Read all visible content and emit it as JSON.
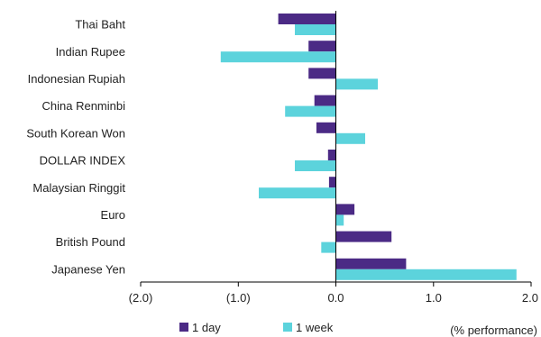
{
  "chart_data": {
    "type": "bar",
    "orientation": "horizontal",
    "categories": [
      "Thai Baht",
      "Indian Rupee",
      "Indonesian Rupiah",
      "China Renminbi",
      "South Korean Won",
      "DOLLAR INDEX",
      "Malaysian Ringgit",
      "Euro",
      "British Pound",
      "Japanese Yen"
    ],
    "series": [
      {
        "name": "1 day",
        "color": "#4B2A85",
        "values": [
          -0.59,
          -0.28,
          -0.28,
          -0.22,
          -0.2,
          -0.08,
          -0.07,
          0.19,
          0.57,
          0.72
        ]
      },
      {
        "name": "1 week",
        "color": "#5CD3DC",
        "values": [
          -0.42,
          -1.18,
          0.43,
          -0.52,
          0.3,
          -0.42,
          -0.79,
          0.08,
          -0.15,
          1.85
        ]
      }
    ],
    "xlim": [
      -2.0,
      2.0
    ],
    "xticks": [
      -2.0,
      -1.0,
      0.0,
      1.0,
      2.0
    ],
    "xtick_labels": [
      "(2.0)",
      "(1.0)",
      "0.0",
      "1.0",
      "2.0"
    ],
    "xlabel": "(% performance)",
    "grid": false,
    "legend_position": "bottom"
  }
}
